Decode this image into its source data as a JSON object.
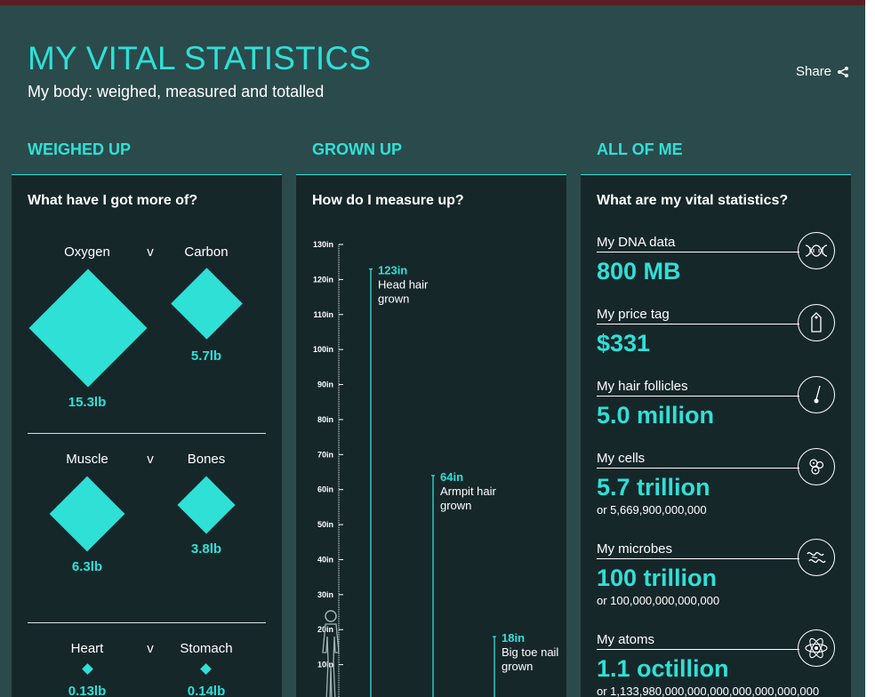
{
  "header": {
    "title": "MY VITAL STATISTICS",
    "subtitle": "My body: weighed, measured and totalled",
    "share_label": "Share"
  },
  "columns": {
    "weighed": {
      "heading": "WEIGHED UP",
      "question": "What have I got more of?",
      "comparisons": [
        {
          "left": {
            "label": "Oxygen",
            "value": "15.3lb",
            "lb": 15.3
          },
          "vs": "v",
          "right": {
            "label": "Carbon",
            "value": "5.7lb",
            "lb": 5.7
          }
        },
        {
          "left": {
            "label": "Muscle",
            "value": "6.3lb",
            "lb": 6.3
          },
          "vs": "v",
          "right": {
            "label": "Bones",
            "value": "3.8lb",
            "lb": 3.8
          }
        },
        {
          "left": {
            "label": "Heart",
            "value": "0.13lb",
            "lb": 0.13
          },
          "vs": "v",
          "right": {
            "label": "Stomach",
            "value": "0.14lb",
            "lb": 0.14
          }
        }
      ]
    },
    "grown": {
      "heading": "GROWN UP",
      "question": "How do I measure up?",
      "chart_data": {
        "type": "bar",
        "ylim": [
          0,
          130
        ],
        "y_unit": "in",
        "yticks": [
          "130in",
          "120in",
          "110in",
          "100in",
          "90in",
          "80in",
          "70in",
          "60in",
          "50in",
          "40in",
          "30in",
          "20in",
          "10in"
        ],
        "bars": [
          {
            "value": 123,
            "value_label": "123in",
            "label": "Head hair grown"
          },
          {
            "value": 64,
            "value_label": "64in",
            "label": "Armpit hair grown"
          },
          {
            "value": 18,
            "value_label": "18in",
            "label": "Big toe nail grown"
          }
        ]
      }
    },
    "all": {
      "heading": "ALL OF ME",
      "question": "What are my vital statistics?",
      "stats": [
        {
          "label": "My DNA data",
          "value": "800 MB",
          "sub": "",
          "icon": "dna-icon"
        },
        {
          "label": "My price tag",
          "value": "$331",
          "sub": "",
          "icon": "price-tag-icon"
        },
        {
          "label": "My hair follicles",
          "value": "5.0 million",
          "sub": "",
          "icon": "hair-follicle-icon"
        },
        {
          "label": "My cells",
          "value": "5.7 trillion",
          "sub": "or 5,669,900,000,000",
          "icon": "cells-icon"
        },
        {
          "label": "My microbes",
          "value": "100 trillion",
          "sub": "or 100,000,000,000,000",
          "icon": "microbes-icon"
        },
        {
          "label": "My atoms",
          "value": "1.1 octillion",
          "sub": "or 1,133,980,000,000,000,000,000,000,000",
          "icon": "atom-icon"
        }
      ]
    }
  },
  "colors": {
    "accent": "#2fe0d6",
    "background": "#2b4a4c",
    "panel": "#16272a"
  }
}
